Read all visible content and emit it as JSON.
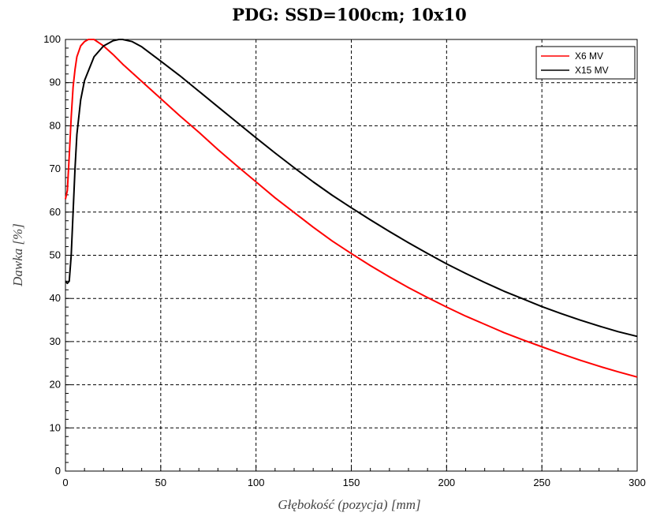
{
  "chart_data": {
    "type": "line",
    "title": "PDG: SSD=100cm; 10x10",
    "xlabel": "Głębokość (pozycja) [mm]",
    "ylabel": "Dawka [%]",
    "xlim": [
      0,
      300
    ],
    "ylim": [
      0,
      100
    ],
    "xticks": [
      0,
      50,
      100,
      150,
      200,
      250,
      300
    ],
    "yticks": [
      0,
      10,
      20,
      30,
      40,
      50,
      60,
      70,
      80,
      90,
      100
    ],
    "grid": true,
    "grid_style": "dashed",
    "legend_position": "top-right",
    "series": [
      {
        "name": "X6 MV",
        "color": "#ff0000",
        "points": [
          [
            0,
            63
          ],
          [
            1,
            65
          ],
          [
            2,
            73
          ],
          [
            3,
            82
          ],
          [
            4,
            89
          ],
          [
            5,
            93
          ],
          [
            6,
            96
          ],
          [
            8,
            98.5
          ],
          [
            10,
            99.5
          ],
          [
            12,
            100
          ],
          [
            15,
            100
          ],
          [
            20,
            98.5
          ],
          [
            25,
            96.5
          ],
          [
            30,
            94.3
          ],
          [
            40,
            90.3
          ],
          [
            50,
            86.3
          ],
          [
            60,
            82.3
          ],
          [
            70,
            78.5
          ],
          [
            80,
            74.5
          ],
          [
            90,
            70.7
          ],
          [
            100,
            67
          ],
          [
            110,
            63.3
          ],
          [
            120,
            59.9
          ],
          [
            130,
            56.5
          ],
          [
            140,
            53.3
          ],
          [
            150,
            50.4
          ],
          [
            160,
            47.6
          ],
          [
            170,
            45
          ],
          [
            180,
            42.5
          ],
          [
            190,
            40.2
          ],
          [
            200,
            38
          ],
          [
            210,
            35.9
          ],
          [
            220,
            34
          ],
          [
            230,
            32.1
          ],
          [
            240,
            30.4
          ],
          [
            250,
            28.8
          ],
          [
            260,
            27.2
          ],
          [
            270,
            25.7
          ],
          [
            280,
            24.3
          ],
          [
            290,
            23
          ],
          [
            300,
            21.8
          ]
        ]
      },
      {
        "name": "X15 MV",
        "color": "#000000",
        "points": [
          [
            0,
            44
          ],
          [
            1,
            43.5
          ],
          [
            2,
            44
          ],
          [
            3,
            50
          ],
          [
            4,
            60
          ],
          [
            5,
            70
          ],
          [
            6,
            78
          ],
          [
            8,
            86
          ],
          [
            10,
            90.5
          ],
          [
            15,
            96
          ],
          [
            20,
            98.5
          ],
          [
            25,
            99.7
          ],
          [
            28,
            100
          ],
          [
            30,
            100
          ],
          [
            35,
            99.5
          ],
          [
            40,
            98.3
          ],
          [
            50,
            95
          ],
          [
            60,
            91.6
          ],
          [
            70,
            88
          ],
          [
            80,
            84.4
          ],
          [
            90,
            80.8
          ],
          [
            100,
            77.2
          ],
          [
            110,
            73.7
          ],
          [
            120,
            70.3
          ],
          [
            130,
            67
          ],
          [
            140,
            63.9
          ],
          [
            150,
            61
          ],
          [
            160,
            58.2
          ],
          [
            170,
            55.5
          ],
          [
            180,
            52.9
          ],
          [
            190,
            50.4
          ],
          [
            200,
            48
          ],
          [
            210,
            45.8
          ],
          [
            220,
            43.7
          ],
          [
            230,
            41.7
          ],
          [
            240,
            39.9
          ],
          [
            250,
            38.1
          ],
          [
            260,
            36.5
          ],
          [
            270,
            35
          ],
          [
            280,
            33.6
          ],
          [
            290,
            32.3
          ],
          [
            300,
            31.2
          ]
        ]
      }
    ]
  }
}
